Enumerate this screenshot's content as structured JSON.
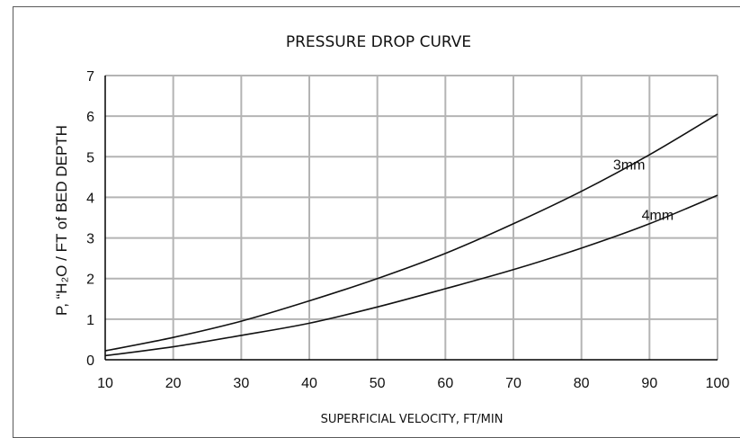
{
  "chart_data": {
    "type": "line",
    "title": "PRESSURE DROP CURVE",
    "xlabel": "SUPERFICIAL VELOCITY, FT/MIN",
    "ylabel": "P, “H₂O / FT of BED DEPTH",
    "xlim": [
      10,
      100
    ],
    "ylim": [
      0,
      7
    ],
    "xticks": [
      "10",
      "20",
      "30",
      "40",
      "50",
      "60",
      "70",
      "80",
      "90",
      "100"
    ],
    "yticks": [
      "0",
      "1",
      "2",
      "3",
      "4",
      "5",
      "6",
      "7"
    ],
    "grid": true,
    "series": [
      {
        "name": "3mm",
        "x": [
          10,
          20,
          30,
          40,
          50,
          60,
          70,
          80,
          90,
          100
        ],
        "y": [
          0.22,
          0.55,
          0.95,
          1.45,
          2.0,
          2.62,
          3.35,
          4.15,
          5.05,
          6.05
        ]
      },
      {
        "name": "4mm",
        "x": [
          10,
          20,
          30,
          40,
          50,
          60,
          70,
          80,
          90,
          100
        ],
        "y": [
          0.1,
          0.32,
          0.6,
          0.9,
          1.3,
          1.75,
          2.22,
          2.75,
          3.35,
          4.05
        ]
      }
    ]
  }
}
